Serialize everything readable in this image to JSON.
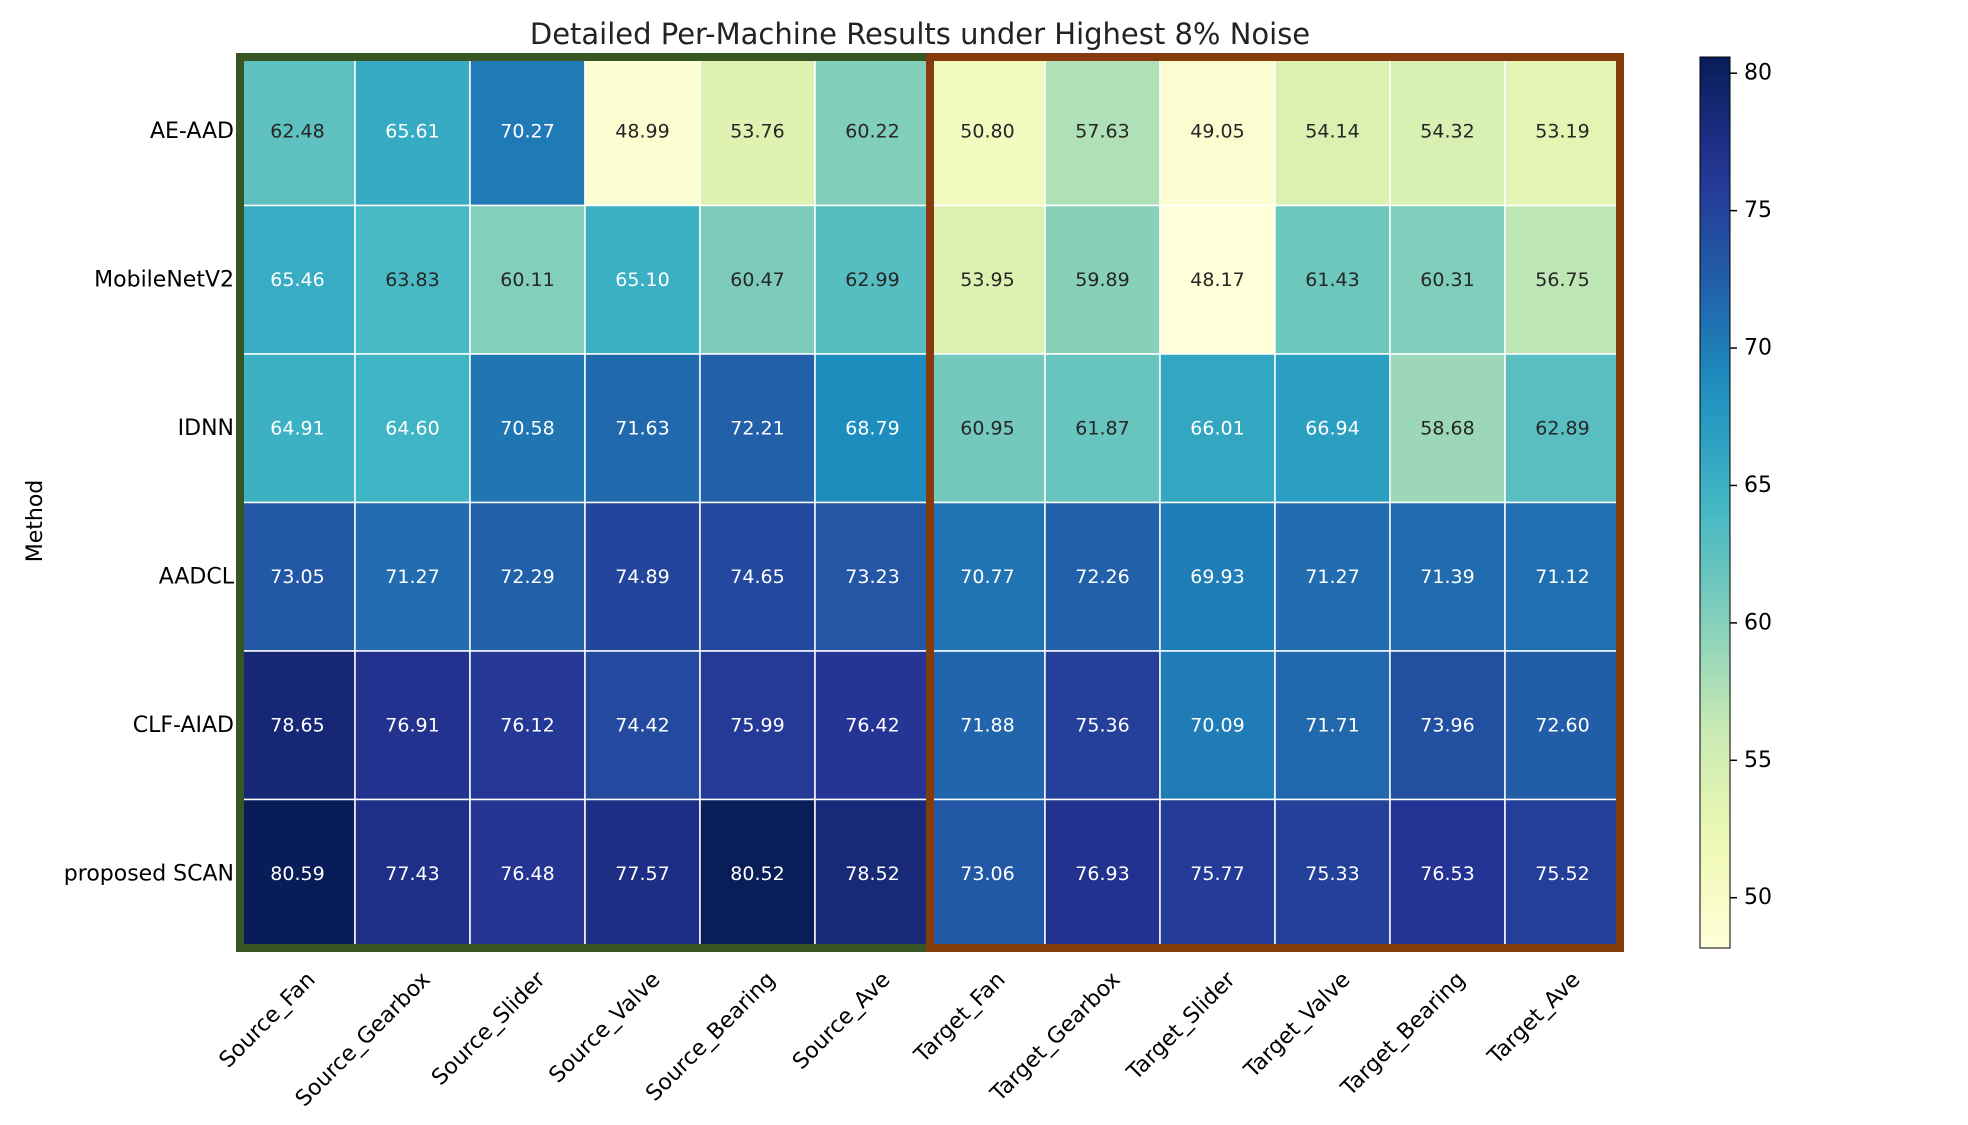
{
  "chart_data": {
    "type": "heatmap",
    "title": "Detailed Per-Machine Results under Highest 8% Noise",
    "ylabel": "Method",
    "xlabel": "",
    "rows": [
      "AE-AAD",
      "MobileNetV2",
      "IDNN",
      "AADCL",
      "CLF-AIAD",
      "proposed SCAN"
    ],
    "columns": [
      "Source_Fan",
      "Source_Gearbox",
      "Source_Slider",
      "Source_Valve",
      "Source_Bearing",
      "Source_Ave",
      "Target_Fan",
      "Target_Gearbox",
      "Target_Slider",
      "Target_Valve",
      "Target_Bearing",
      "Target_Ave"
    ],
    "values": [
      [
        62.48,
        65.61,
        70.27,
        48.99,
        53.76,
        60.22,
        50.8,
        57.63,
        49.05,
        54.14,
        54.32,
        53.19
      ],
      [
        65.46,
        63.83,
        60.11,
        65.1,
        60.47,
        62.99,
        53.95,
        59.89,
        48.17,
        61.43,
        60.31,
        56.75
      ],
      [
        64.91,
        64.6,
        70.58,
        71.63,
        72.21,
        68.79,
        60.95,
        61.87,
        66.01,
        66.94,
        58.68,
        62.89
      ],
      [
        73.05,
        71.27,
        72.29,
        74.89,
        74.65,
        73.23,
        70.77,
        72.26,
        69.93,
        71.27,
        71.39,
        71.12
      ],
      [
        78.65,
        76.91,
        76.12,
        74.42,
        75.99,
        76.42,
        71.88,
        75.36,
        70.09,
        71.71,
        73.96,
        72.6
      ],
      [
        80.59,
        77.43,
        76.48,
        77.57,
        80.52,
        78.52,
        73.06,
        76.93,
        75.77,
        75.33,
        76.53,
        75.52
      ]
    ],
    "colormap": "YlGnBu",
    "vmin": 48.17,
    "vmax": 80.59,
    "colorbar_ticks": [
      50,
      55,
      60,
      65,
      70,
      75,
      80
    ],
    "highlight_groups": [
      {
        "columns": [
          0,
          5
        ],
        "color": "#375623"
      },
      {
        "columns": [
          6,
          11
        ],
        "color": "#843c0c"
      }
    ]
  }
}
